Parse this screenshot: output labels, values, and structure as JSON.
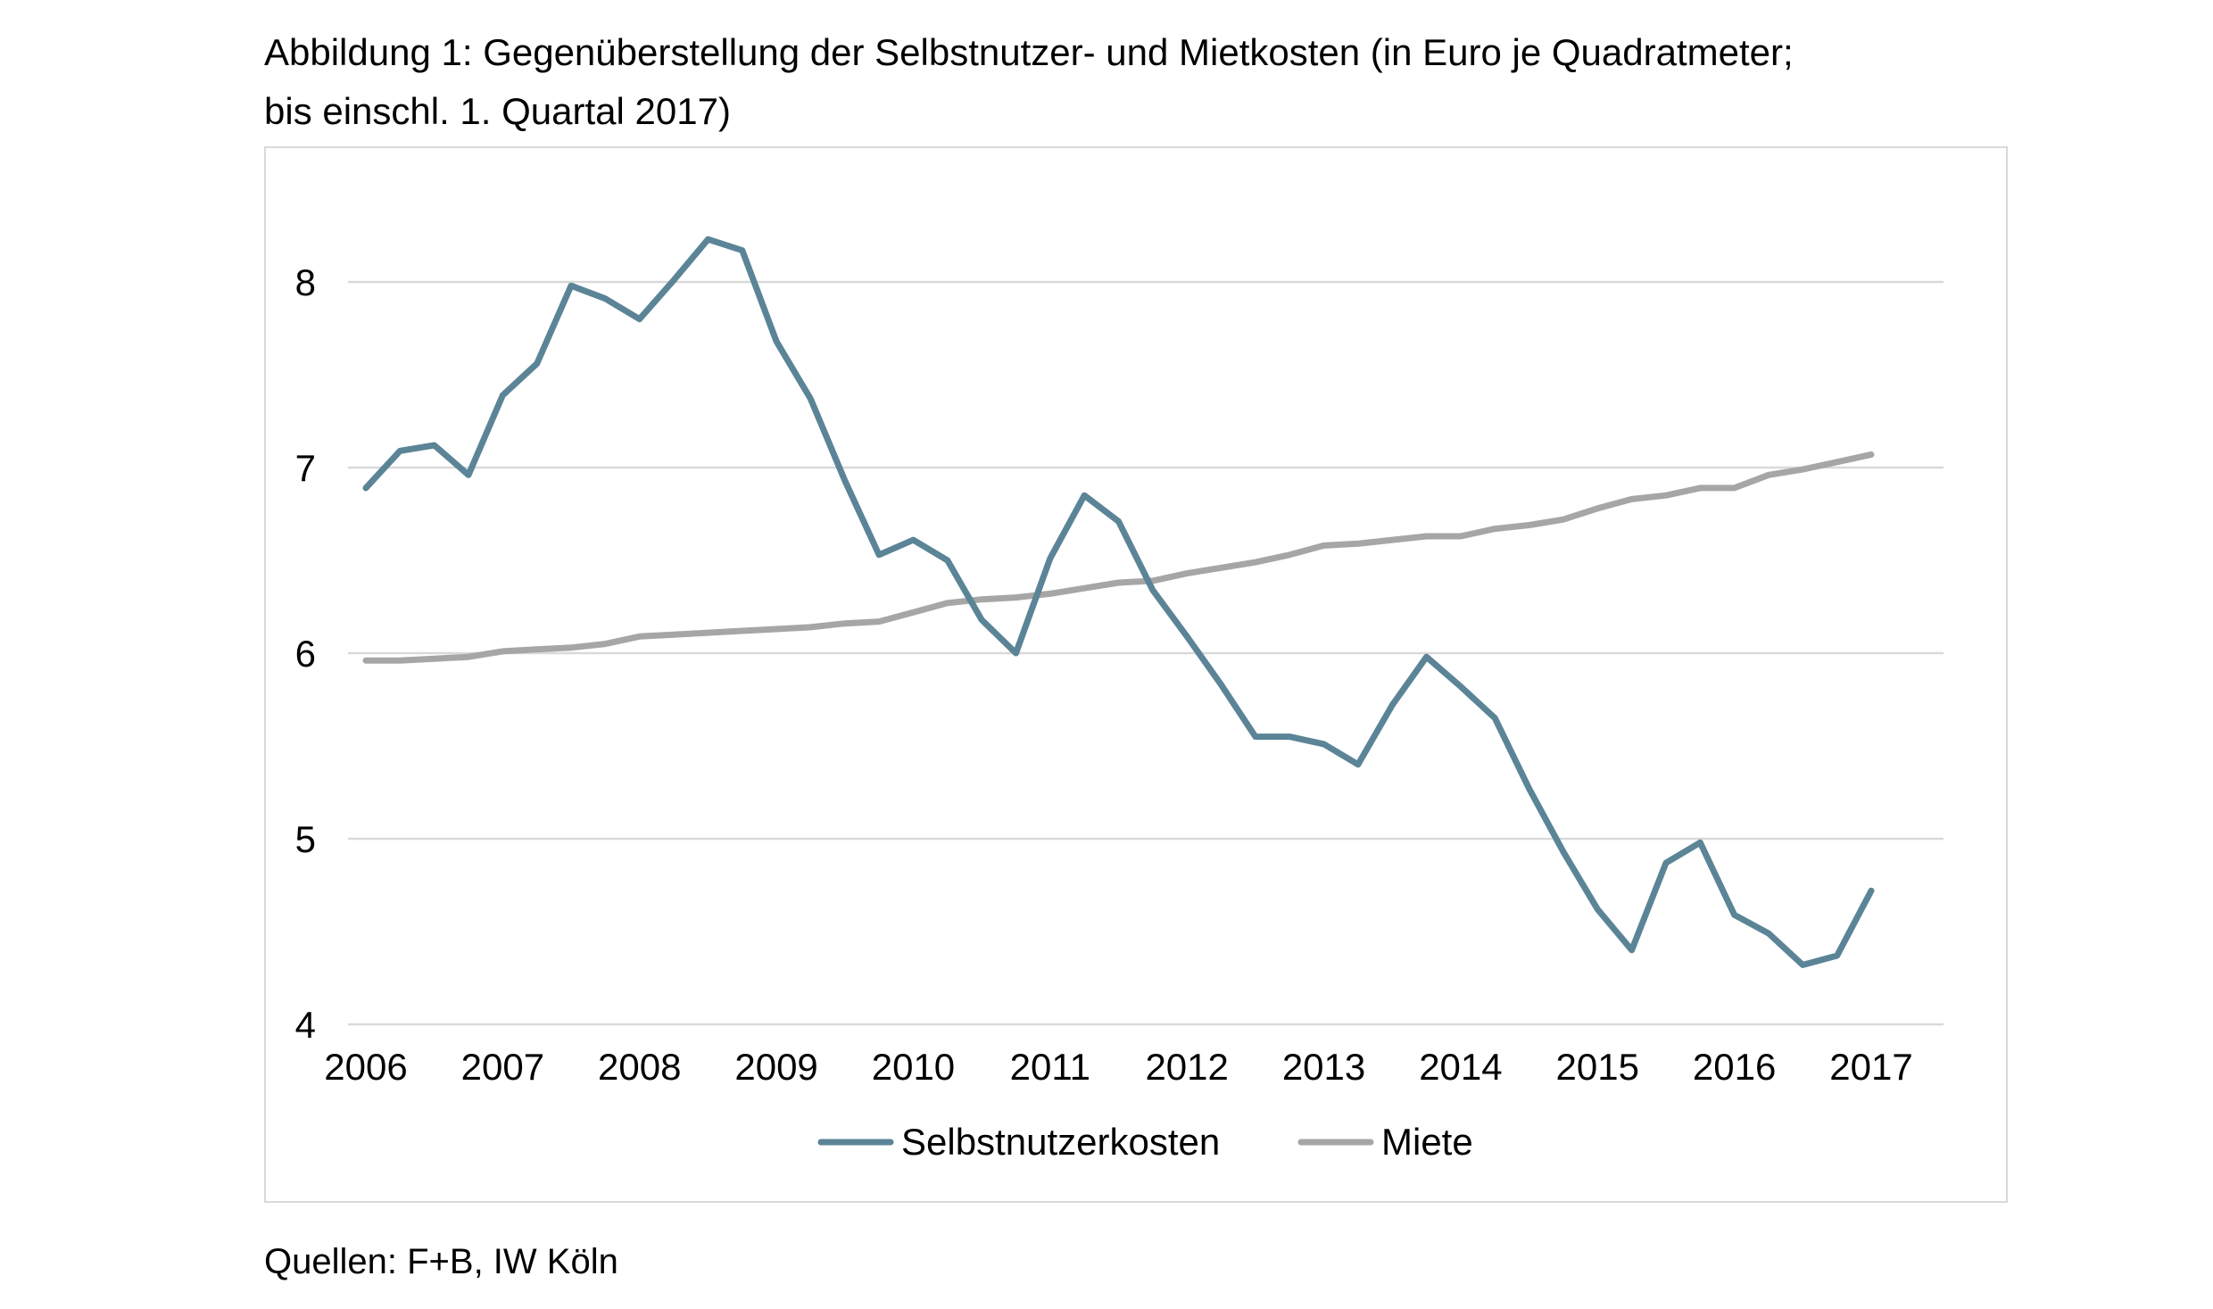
{
  "title_line1": "Abbildung 1: Gegenüberstellung der Selbstnutzer- und Mietkosten (in Euro je Quadratmeter;",
  "title_line2": "bis einschl. 1. Quartal 2017)",
  "source": "Quellen: F+B, IW Köln",
  "chart_data": {
    "type": "line",
    "title": "Abbildung 1: Gegenüberstellung der Selbstnutzer- und Mietkosten (in Euro je Quadratmeter; bis einschl. 1. Quartal 2017)",
    "xlabel": "",
    "ylabel": "",
    "x_ticks": [
      "2006",
      "2007",
      "2008",
      "2009",
      "2010",
      "2011",
      "2012",
      "2013",
      "2014",
      "2015",
      "2016",
      "2017"
    ],
    "y_ticks": [
      4,
      5,
      6,
      7,
      8
    ],
    "xlim": [
      2006,
      2017
    ],
    "ylim": [
      4,
      8.6
    ],
    "grid": "horizontal",
    "legend": "bottom-center",
    "x": [
      2006.0,
      2006.25,
      2006.5,
      2006.75,
      2007.0,
      2007.25,
      2007.5,
      2007.75,
      2008.0,
      2008.25,
      2008.5,
      2008.75,
      2009.0,
      2009.25,
      2009.5,
      2009.75,
      2010.0,
      2010.25,
      2010.5,
      2010.75,
      2011.0,
      2011.25,
      2011.5,
      2011.75,
      2012.0,
      2012.25,
      2012.5,
      2012.75,
      2013.0,
      2013.25,
      2013.5,
      2013.75,
      2014.0,
      2014.25,
      2014.5,
      2014.75,
      2015.0,
      2015.25,
      2015.5,
      2015.75,
      2016.0,
      2016.25,
      2016.5,
      2016.75,
      2017.0
    ],
    "series": [
      {
        "name": "Selbstnutzerkosten",
        "color": "#5b8497",
        "values": [
          6.89,
          7.09,
          7.12,
          6.96,
          7.39,
          7.56,
          7.98,
          7.91,
          7.8,
          8.01,
          8.23,
          8.17,
          7.68,
          7.37,
          6.93,
          6.53,
          6.61,
          6.5,
          6.18,
          6.0,
          6.51,
          6.85,
          6.71,
          6.34,
          6.09,
          5.83,
          5.55,
          5.55,
          5.51,
          5.4,
          5.72,
          5.98,
          5.82,
          5.65,
          5.27,
          4.93,
          4.62,
          4.4,
          4.87,
          4.98,
          4.59,
          4.49,
          4.32,
          4.37,
          4.72
        ]
      },
      {
        "name": "Miete",
        "color": "#a6a6a6",
        "values": [
          5.96,
          5.96,
          5.97,
          5.98,
          6.01,
          6.02,
          6.03,
          6.05,
          6.09,
          6.1,
          6.11,
          6.12,
          6.13,
          6.14,
          6.16,
          6.17,
          6.22,
          6.27,
          6.29,
          6.3,
          6.32,
          6.35,
          6.38,
          6.39,
          6.43,
          6.46,
          6.49,
          6.53,
          6.58,
          6.59,
          6.61,
          6.63,
          6.63,
          6.67,
          6.69,
          6.72,
          6.78,
          6.83,
          6.85,
          6.89,
          6.89,
          6.96,
          6.99,
          7.03,
          7.07
        ]
      }
    ]
  }
}
